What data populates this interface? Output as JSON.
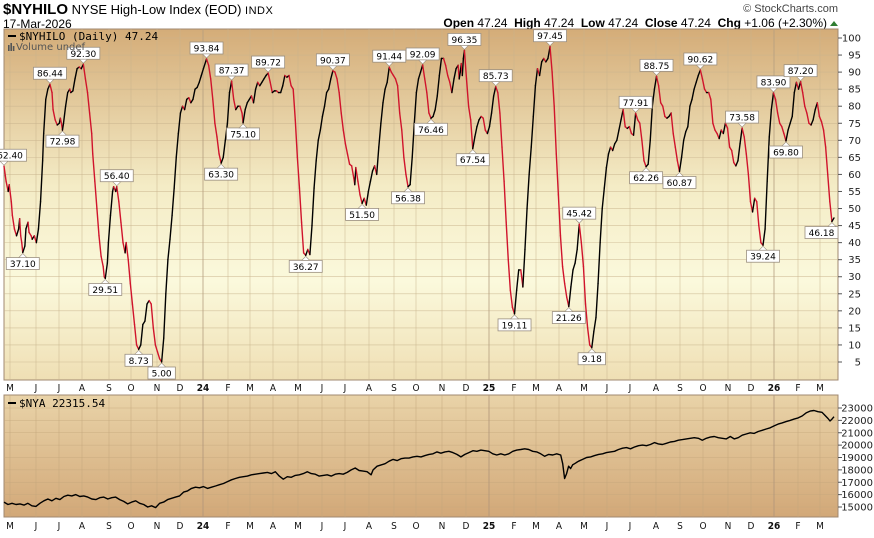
{
  "header": {
    "symbol": "$NYHILO",
    "description": "NYSE High-Low Index (EOD)",
    "exchange": "INDX",
    "date": "17-Mar-2026",
    "credit": "© StockCharts.com",
    "ohlc": {
      "open_label": "Open",
      "open": "47.24",
      "high_label": "High",
      "high": "47.24",
      "low_label": "Low",
      "low": "47.24",
      "close_label": "Close",
      "close": "47.24",
      "chg_label": "Chg",
      "chg": "+1.06 (+2.30%)"
    }
  },
  "colors": {
    "rising": "#000000",
    "falling": "#d0142c",
    "panel_top": "#d4ac78",
    "panel_mid": "#fbf8d8",
    "grid": "#c8b08a",
    "frame": "#a08870",
    "up_arrow": "#2e7d32"
  },
  "main_panel": {
    "legend": "$NYHILO (Daily) 47.24",
    "volume_label": "Volume undef"
  },
  "lower_panel": {
    "legend": "$NYA 22315.54"
  },
  "chart_data": [
    {
      "type": "line",
      "title": "$NYHILO NYSE High-Low Index (EOD) (Daily)",
      "series_name": "$NYHILO",
      "last_value": 47.24,
      "ylim": [
        0,
        102
      ],
      "yticks": [
        5,
        10,
        15,
        20,
        25,
        30,
        35,
        40,
        45,
        50,
        55,
        60,
        65,
        70,
        75,
        80,
        85,
        90,
        95,
        100
      ],
      "x_tick_labels": [
        "M",
        "J",
        "J",
        "A",
        "S",
        "O",
        "N",
        "D",
        "24",
        "F",
        "M",
        "A",
        "M",
        "J",
        "J",
        "A",
        "S",
        "O",
        "N",
        "D",
        "25",
        "F",
        "M",
        "A",
        "M",
        "J",
        "J",
        "A",
        "S",
        "O",
        "N",
        "D",
        "26",
        "F",
        "M"
      ],
      "grid": true,
      "color_rule": "black when rising, red when falling",
      "pivot_annotations": [
        {
          "label": "62.40",
          "value": 62.4,
          "month": "M 2023",
          "type": "high",
          "partial": true
        },
        {
          "label": "37.10",
          "value": 37.1,
          "month": "M-J 2023",
          "type": "low"
        },
        {
          "label": "86.44",
          "value": 86.44,
          "month": "J 2023",
          "type": "high"
        },
        {
          "label": "72.98",
          "value": 72.98,
          "month": "J 2023",
          "type": "low"
        },
        {
          "label": "92.30",
          "value": 92.3,
          "month": "J 2023",
          "type": "high"
        },
        {
          "label": "29.51",
          "value": 29.51,
          "month": "A 2023",
          "type": "low"
        },
        {
          "label": "56.40",
          "value": 56.4,
          "month": "S 2023",
          "type": "high"
        },
        {
          "label": "8.73",
          "value": 8.73,
          "month": "O 2023",
          "type": "low"
        },
        {
          "label": "5.00",
          "value": 5.0,
          "month": "N 2023",
          "type": "low"
        },
        {
          "label": "93.84",
          "value": 93.84,
          "month": "J 2024",
          "type": "high"
        },
        {
          "label": "63.30",
          "value": 63.3,
          "month": "J 2024",
          "type": "low"
        },
        {
          "label": "87.37",
          "value": 87.37,
          "month": "F 2024",
          "type": "high"
        },
        {
          "label": "75.10",
          "value": 75.1,
          "month": "F 2024",
          "type": "low"
        },
        {
          "label": "89.72",
          "value": 89.72,
          "month": "M 2024",
          "type": "high"
        },
        {
          "label": "36.27",
          "value": 36.27,
          "month": "A 2024",
          "type": "low"
        },
        {
          "label": "90.37",
          "value": 90.37,
          "month": "M 2024",
          "type": "high"
        },
        {
          "label": "51.50",
          "value": 51.5,
          "month": "J 2024",
          "type": "low"
        },
        {
          "label": "91.44",
          "value": 91.44,
          "month": "J 2024",
          "type": "high"
        },
        {
          "label": "56.38",
          "value": 56.38,
          "month": "A 2024",
          "type": "low"
        },
        {
          "label": "92.09",
          "value": 92.09,
          "month": "A 2024",
          "type": "high"
        },
        {
          "label": "76.46",
          "value": 76.46,
          "month": "S 2024",
          "type": "low"
        },
        {
          "label": "96.35",
          "value": 96.35,
          "month": "N 2024",
          "type": "high"
        },
        {
          "label": "67.54",
          "value": 67.54,
          "month": "N 2024",
          "type": "low"
        },
        {
          "label": "85.73",
          "value": 85.73,
          "month": "D 2024",
          "type": "high"
        },
        {
          "label": "19.11",
          "value": 19.11,
          "month": "J 2025",
          "type": "low"
        },
        {
          "label": "97.45",
          "value": 97.45,
          "month": "F 2025",
          "type": "high"
        },
        {
          "label": "21.26",
          "value": 21.26,
          "month": "M 2025",
          "type": "low"
        },
        {
          "label": "45.42",
          "value": 45.42,
          "month": "M-A 2025",
          "type": "high"
        },
        {
          "label": "9.18",
          "value": 9.18,
          "month": "A 2025",
          "type": "low"
        },
        {
          "label": "77.91",
          "value": 77.91,
          "month": "J 2025",
          "type": "high"
        },
        {
          "label": "62.26",
          "value": 62.26,
          "month": "J 2025",
          "type": "low"
        },
        {
          "label": "88.75",
          "value": 88.75,
          "month": "J 2025",
          "type": "high"
        },
        {
          "label": "60.87",
          "value": 60.87,
          "month": "A 2025",
          "type": "low"
        },
        {
          "label": "90.62",
          "value": 90.62,
          "month": "S 2025",
          "type": "high"
        },
        {
          "label": "73.58",
          "value": 73.58,
          "month": "O 2025",
          "type": "high"
        },
        {
          "label": "39.24",
          "value": 39.24,
          "month": "N-D 2025",
          "type": "low"
        },
        {
          "label": "83.90",
          "value": 83.9,
          "month": "D 2025",
          "type": "high"
        },
        {
          "label": "69.80",
          "value": 69.8,
          "month": "J 2026",
          "type": "low"
        },
        {
          "label": "87.20",
          "value": 87.2,
          "month": "J 2026",
          "type": "high"
        },
        {
          "label": "46.18",
          "value": 46.18,
          "month": "M 2026",
          "type": "low"
        }
      ]
    },
    {
      "type": "line",
      "title": "$NYA",
      "series_name": "$NYA",
      "last_value": 22315.54,
      "ylim": [
        14500,
        23600
      ],
      "yticks": [
        15000,
        16000,
        17000,
        18000,
        19000,
        20000,
        21000,
        22000,
        23000
      ],
      "x_tick_labels": [
        "M",
        "J",
        "J",
        "A",
        "S",
        "O",
        "N",
        "D",
        "24",
        "F",
        "M",
        "A",
        "M",
        "J",
        "J",
        "A",
        "S",
        "O",
        "N",
        "D",
        "25",
        "F",
        "M",
        "A",
        "M",
        "J",
        "J",
        "A",
        "S",
        "O",
        "N",
        "D",
        "26",
        "F",
        "M"
      ],
      "grid": true,
      "approx_points": [
        {
          "month": "M 2023",
          "value": 15400
        },
        {
          "month": "J 2023",
          "value": 15200
        },
        {
          "month": "A 2023",
          "value": 15900
        },
        {
          "month": "O 2023",
          "value": 15200
        },
        {
          "month": "N 2023",
          "value": 14900
        },
        {
          "month": "J 2024",
          "value": 16800
        },
        {
          "month": "A 2024",
          "value": 17900
        },
        {
          "month": "M 2024",
          "value": 17400
        },
        {
          "month": "J 2024",
          "value": 17900
        },
        {
          "month": "S 2024",
          "value": 19200
        },
        {
          "month": "N 2024",
          "value": 19900
        },
        {
          "month": "J 2025",
          "value": 19200
        },
        {
          "month": "F 2025",
          "value": 19900
        },
        {
          "month": "A 2025",
          "value": 17200
        },
        {
          "month": "J 2025",
          "value": 19400
        },
        {
          "month": "S 2025",
          "value": 20700
        },
        {
          "month": "N 2025",
          "value": 21000
        },
        {
          "month": "J 2026",
          "value": 22500
        },
        {
          "month": "F 2026",
          "value": 23300
        },
        {
          "month": "M 2026",
          "value": 22315
        }
      ]
    }
  ]
}
